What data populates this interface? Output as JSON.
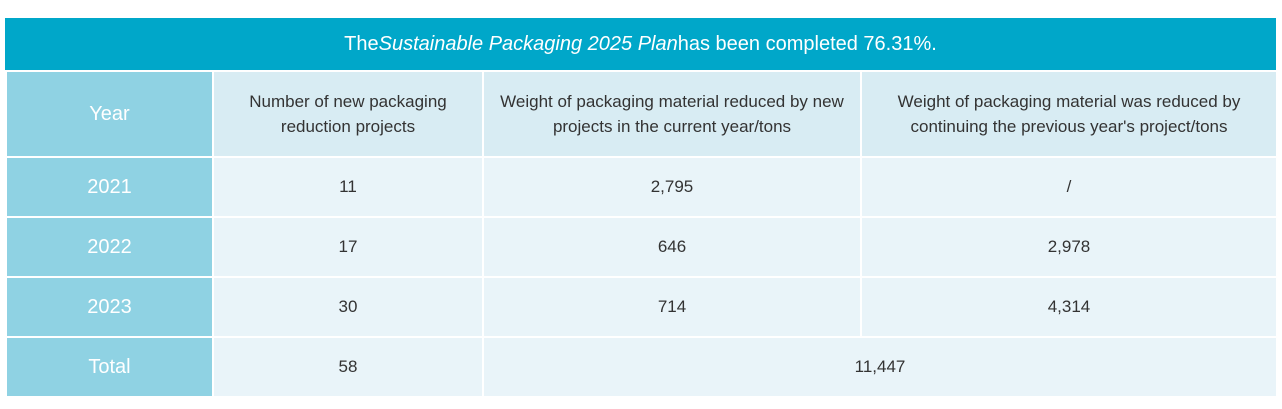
{
  "banner": {
    "prefix": "The ",
    "plan_name": "Sustainable Packaging 2025 Plan",
    "suffix": " has been completed 76.31%."
  },
  "table": {
    "headers": {
      "year": "Year",
      "new_projects": "Number of new packaging reduction projects",
      "reduced_new": "Weight of packaging material reduced by new projects in the current year/tons",
      "reduced_continuing": "Weight of packaging material was reduced by continuing the previous year's project/tons"
    },
    "rows": [
      {
        "year": "2021",
        "new_projects": "11",
        "reduced_new": "2,795",
        "reduced_continuing": "/"
      },
      {
        "year": "2022",
        "new_projects": "17",
        "reduced_new": "646",
        "reduced_continuing": "2,978"
      },
      {
        "year": "2023",
        "new_projects": "30",
        "reduced_new": "714",
        "reduced_continuing": "4,314"
      }
    ],
    "total": {
      "label": "Total",
      "new_projects": "58",
      "reduced_total": "11,447"
    }
  }
}
